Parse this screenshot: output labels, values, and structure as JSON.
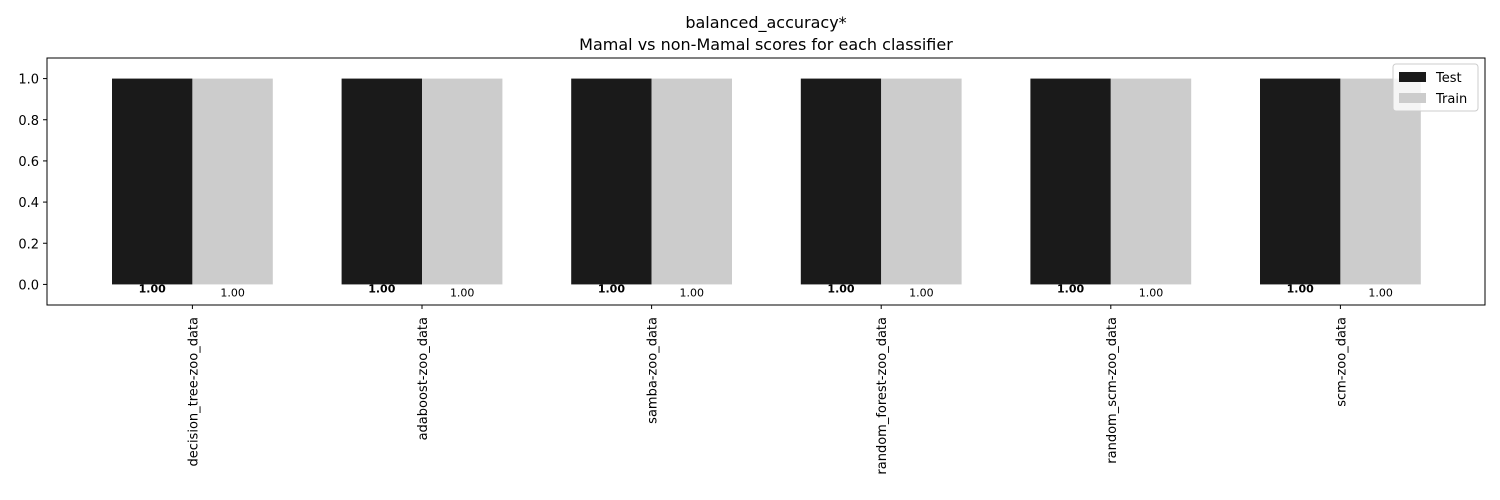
{
  "chart_data": {
    "type": "bar",
    "title": "balanced_accuracy*",
    "subtitle": "Mamal vs non-Mamal scores for each classifier",
    "xlabel": "",
    "ylabel": "",
    "ylim": [
      -0.1,
      1.1
    ],
    "yticks": [
      "0.0",
      "0.2",
      "0.4",
      "0.6",
      "0.8",
      "1.0"
    ],
    "categories": [
      "decision_tree-zoo_data",
      "adaboost-zoo_data",
      "samba-zoo_data",
      "random_forest-zoo_data",
      "random_scm-zoo_data",
      "scm-zoo_data"
    ],
    "series": [
      {
        "name": "Test",
        "color": "#1a1a1a",
        "values": [
          1.0,
          1.0,
          1.0,
          1.0,
          1.0,
          1.0
        ],
        "labels": [
          "1.00",
          "1.00",
          "1.00",
          "1.00",
          "1.00",
          "1.00"
        ],
        "label_bold": true
      },
      {
        "name": "Train",
        "color": "#cccccc",
        "values": [
          1.0,
          1.0,
          1.0,
          1.0,
          1.0,
          1.0
        ],
        "labels": [
          "1.00",
          "1.00",
          "1.00",
          "1.00",
          "1.00",
          "1.00"
        ],
        "label_bold": false
      }
    ],
    "legend": "top-right",
    "grid": false
  }
}
